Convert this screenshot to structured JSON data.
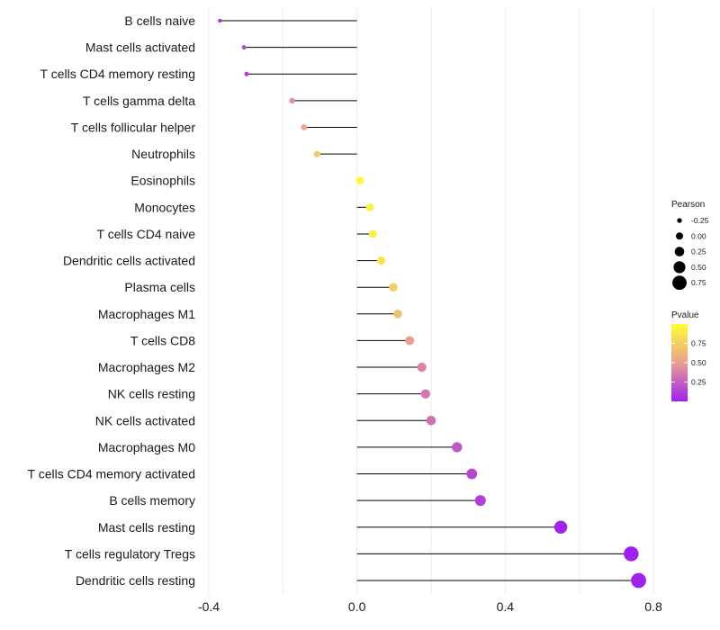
{
  "chart_data": {
    "type": "lollipop",
    "xlim": [
      -0.4,
      0.8
    ],
    "x_ticks": [
      -0.4,
      0.0,
      0.4,
      0.8
    ],
    "x_tick_labels": [
      "-0.4",
      "0.0",
      "0.4",
      "0.8"
    ],
    "grid": true,
    "categories": [
      "B cells naive",
      "Mast cells activated",
      "T cells CD4 memory resting",
      "T cells gamma delta",
      "T cells follicular helper",
      "Neutrophils",
      "Eosinophils",
      "Monocytes",
      "T cells CD4 naive",
      "Dendritic cells activated",
      "Plasma cells",
      "Macrophages M1",
      "T cells CD8",
      "Macrophages M2",
      "NK cells resting",
      "NK cells activated",
      "Macrophages M0",
      "T cells CD4 memory activated",
      "B cells memory",
      "Mast cells resting",
      "T cells regulatory  Tregs ",
      "Dendritic cells resting"
    ],
    "values": [
      -0.37,
      -0.305,
      -0.298,
      -0.175,
      -0.143,
      -0.108,
      0.008,
      0.035,
      0.043,
      0.065,
      0.098,
      0.11,
      0.142,
      0.175,
      0.185,
      0.2,
      0.27,
      0.31,
      0.333,
      0.55,
      0.74,
      0.76
    ],
    "pvalues": [
      0.05,
      0.15,
      0.13,
      0.45,
      0.55,
      0.72,
      0.97,
      0.93,
      0.92,
      0.85,
      0.75,
      0.68,
      0.5,
      0.4,
      0.35,
      0.32,
      0.22,
      0.15,
      0.12,
      0.01,
      0.0,
      0.0
    ],
    "legend_size": {
      "title": "Pearson",
      "labels": [
        "-0.25",
        "0.00",
        "0.25",
        "0.50",
        "0.75"
      ],
      "values": [
        -0.25,
        0.0,
        0.25,
        0.5,
        0.75
      ]
    },
    "legend_color": {
      "title": "Pvalue",
      "labels": [
        "0.75",
        "0.50",
        "0.25"
      ],
      "values": [
        0.75,
        0.5,
        0.25
      ],
      "low_color": "#a020f0",
      "mid_color": "#e8a090",
      "high_color": "#ffff33"
    },
    "line_color": "#000000",
    "grid_color": "#ebebeb",
    "legend_position": "right"
  }
}
